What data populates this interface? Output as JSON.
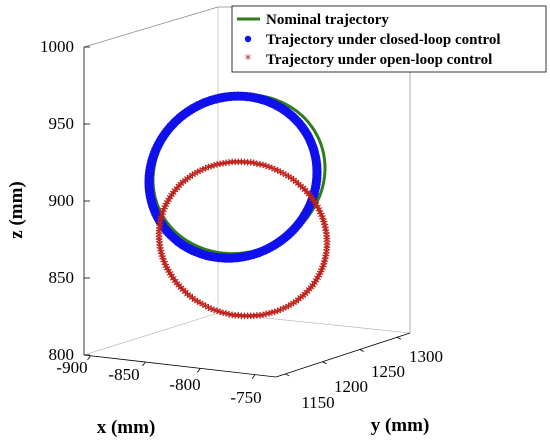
{
  "chart_data": {
    "type": "line3d",
    "axes": {
      "x": {
        "label": "x (mm)",
        "ticks": [
          "-900",
          "-850",
          "-800",
          "-750"
        ]
      },
      "y": {
        "label": "y (mm)",
        "ticks": [
          "1150",
          "1200",
          "1250",
          "1300"
        ]
      },
      "z": {
        "label": "z (mm)",
        "ticks": [
          "800",
          "850",
          "900",
          "950",
          "1000"
        ],
        "range": [
          800,
          1000
        ]
      }
    },
    "grid": false,
    "box": true,
    "legend": {
      "position": "top-right",
      "entries": [
        {
          "label": "Nominal trajectory",
          "marker": "line",
          "color": "#2e7d1a"
        },
        {
          "label": "Trajectory under closed-loop control",
          "marker": "dot",
          "color": "#1010ee"
        },
        {
          "label": "Trajectory under open-loop control",
          "marker": "star",
          "color": "#c0201a"
        }
      ]
    },
    "series": [
      {
        "name": "Nominal trajectory",
        "style": "line",
        "color": "#2e7d1a",
        "z_range": [
          866,
          969
        ]
      },
      {
        "name": "Trajectory under closed-loop control",
        "style": "dots",
        "color": "#1010ee",
        "z_range": [
          863,
          968
        ]
      },
      {
        "name": "Trajectory under open-loop control",
        "style": "stars",
        "color": "#c0201a",
        "z_range": [
          824,
          924
        ]
      }
    ]
  }
}
